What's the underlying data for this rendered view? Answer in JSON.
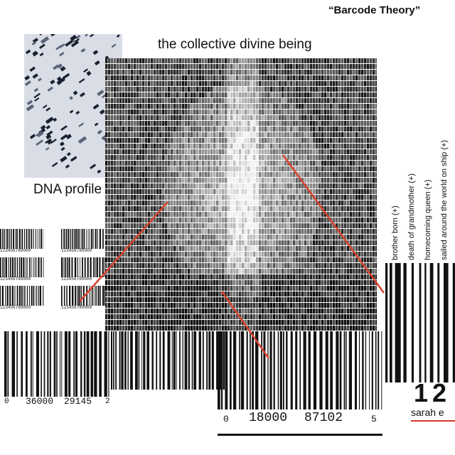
{
  "title": "“Barcode Theory”",
  "central_caption": "the collective divine being",
  "dna_caption": "DNA profile",
  "life_events": [
    "brother born (+)",
    "death of grandmother (+)",
    "homecoming queen (+)",
    "sailed around the world on ship (+)"
  ],
  "bottom_left_barcode": {
    "left_digit": "0",
    "left_group": "36000",
    "right_group": "29145",
    "right_digit": "2"
  },
  "bottom_center_barcode": {
    "left_digit": "0",
    "left_group": "18000",
    "right_group": "87102",
    "right_digit": "5"
  },
  "right_barcode": {
    "number": "12",
    "name": "sarah e"
  },
  "small_barcode_digits": "123456789000",
  "colors": {
    "arrow": "#d9432e",
    "underline": "#d23a2a",
    "ink": "#111111"
  }
}
